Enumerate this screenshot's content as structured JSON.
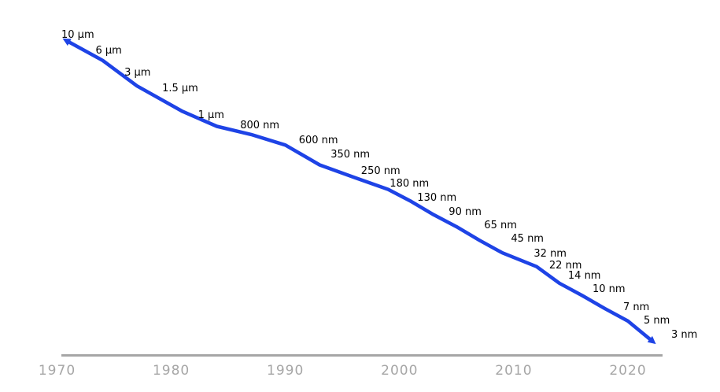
{
  "chart_data": {
    "type": "line",
    "title": "",
    "y_scale": "log",
    "grid": false,
    "legend": "none",
    "xlim": [
      1970,
      2023
    ],
    "ylim_nm": [
      3,
      10000
    ],
    "series": [
      {
        "points": [
          {
            "x": 1971,
            "y_nm": 10000,
            "label": "10 µm"
          },
          {
            "x": 1974,
            "y_nm": 6000,
            "label": "6 µm"
          },
          {
            "x": 1977,
            "y_nm": 3000,
            "label": "3 µm"
          },
          {
            "x": 1981,
            "y_nm": 1500,
            "label": "1.5 µm"
          },
          {
            "x": 1984,
            "y_nm": 1000,
            "label": "1 µm"
          },
          {
            "x": 1987,
            "y_nm": 800,
            "label": "800 nm"
          },
          {
            "x": 1990,
            "y_nm": 600,
            "label": "600 nm"
          },
          {
            "x": 1993,
            "y_nm": 350,
            "label": "350 nm"
          },
          {
            "x": 1996,
            "y_nm": 250,
            "label": "250 nm"
          },
          {
            "x": 1999,
            "y_nm": 180,
            "label": "180 nm"
          },
          {
            "x": 2001,
            "y_nm": 130,
            "label": "130 nm"
          },
          {
            "x": 2003,
            "y_nm": 90,
            "label": "90 nm"
          },
          {
            "x": 2005,
            "y_nm": 65,
            "label": "65 nm"
          },
          {
            "x": 2007,
            "y_nm": 45,
            "label": "45 nm"
          },
          {
            "x": 2009,
            "y_nm": 32,
            "label": "32 nm"
          },
          {
            "x": 2012,
            "y_nm": 22,
            "label": "22 nm"
          },
          {
            "x": 2014,
            "y_nm": 14,
            "label": "14 nm"
          },
          {
            "x": 2016,
            "y_nm": 10,
            "label": "10 nm"
          },
          {
            "x": 2018,
            "y_nm": 7,
            "label": "7 nm"
          },
          {
            "x": 2020,
            "y_nm": 5,
            "label": "5 nm"
          },
          {
            "x": 2022,
            "y_nm": 3,
            "label": "3 nm"
          }
        ]
      }
    ],
    "x_ticks": [
      {
        "value": 1970,
        "label": "1970"
      },
      {
        "value": 1980,
        "label": "1980"
      },
      {
        "value": 1990,
        "label": "1990"
      },
      {
        "value": 2000,
        "label": "2000"
      },
      {
        "value": 2010,
        "label": "2010"
      },
      {
        "value": 2020,
        "label": "2020"
      }
    ],
    "arrows": {
      "start": true,
      "end": true
    },
    "colors": {
      "line": "#1e43e6",
      "axis": "#a6a6a6",
      "tick_label": "#a6a6a6",
      "point_label": "#000000",
      "background": "#ffffff"
    }
  }
}
